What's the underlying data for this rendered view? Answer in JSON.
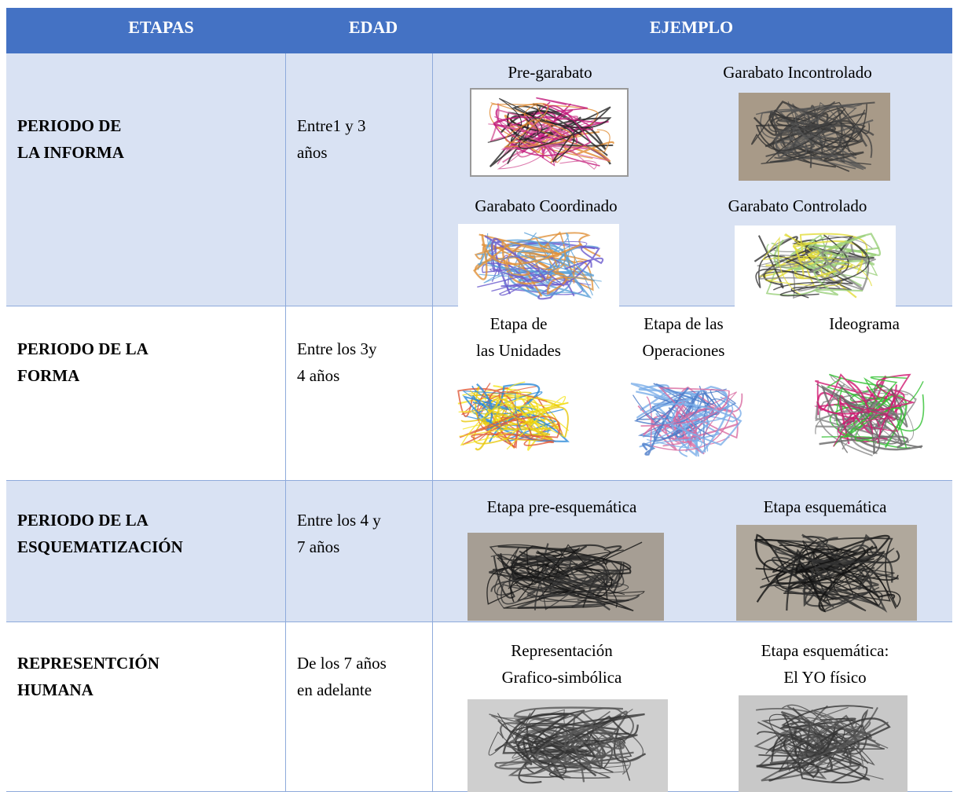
{
  "header": [
    "ETAPAS",
    "EDAD",
    "EJEMPLO"
  ],
  "rows": [
    {
      "stage": [
        "PERIODO DE",
        "LA INFORMA"
      ],
      "age": [
        "Entre1 y 3",
        "años"
      ],
      "examples": [
        {
          "caption": [
            "Pre-garabato"
          ]
        },
        {
          "caption": [
            "Garabato Incontrolado"
          ]
        },
        {
          "caption": [
            "Garabato Coordinado"
          ]
        },
        {
          "caption": [
            "Garabato Controlado"
          ]
        }
      ]
    },
    {
      "stage": [
        "PERIODO DE LA",
        "FORMA"
      ],
      "age": [
        "Entre los 3y",
        "4 años"
      ],
      "examples": [
        {
          "caption": [
            "Etapa de",
            "las Unidades"
          ]
        },
        {
          "caption": [
            "Etapa de las",
            "Operaciones"
          ]
        },
        {
          "caption": [
            "Ideograma"
          ]
        }
      ]
    },
    {
      "stage": [
        "PERIODO DE LA",
        "ESQUEMATIZACIÓN"
      ],
      "age": [
        "Entre los 4 y",
        "7 años"
      ],
      "examples": [
        {
          "caption": [
            "Etapa pre-esquemática"
          ]
        },
        {
          "caption": [
            "Etapa esquemática"
          ]
        }
      ]
    },
    {
      "stage": [
        "REPRESENTCIÓN",
        "HUMANA"
      ],
      "age": [
        "De los 7 años",
        "en adelante"
      ],
      "examples": [
        {
          "caption": [
            "Representación",
            "Grafico-simbólica"
          ]
        },
        {
          "caption": [
            "Etapa esquemática:",
            "El YO físico"
          ]
        }
      ]
    }
  ]
}
